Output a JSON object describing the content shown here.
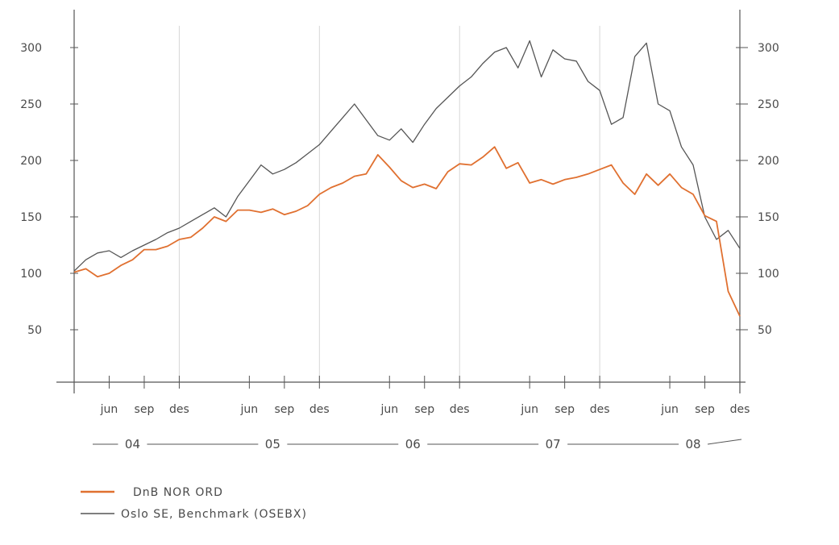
{
  "chart_data": {
    "type": "line",
    "title": "",
    "xlabel": "",
    "ylabel": "",
    "ylim": [
      0,
      320
    ],
    "y_ticks": [
      50,
      100,
      150,
      200,
      250,
      300
    ],
    "y_tick_labels_left": [
      "50",
      "100",
      "150",
      "200",
      "250",
      "300"
    ],
    "y_tick_labels_right": [
      "50",
      "100",
      "150",
      "200",
      "250",
      "300"
    ],
    "x_range": [
      "2004-03",
      "2008-12"
    ],
    "x_tick_labels": [
      {
        "date": "2004-06",
        "label": "jun"
      },
      {
        "date": "2004-09",
        "label": "sep"
      },
      {
        "date": "2004-12",
        "label": "des"
      },
      {
        "date": "2005-06",
        "label": "jun"
      },
      {
        "date": "2005-09",
        "label": "sep"
      },
      {
        "date": "2005-12",
        "label": "des"
      },
      {
        "date": "2006-06",
        "label": "jun"
      },
      {
        "date": "2006-09",
        "label": "sep"
      },
      {
        "date": "2006-12",
        "label": "des"
      },
      {
        "date": "2007-06",
        "label": "jun"
      },
      {
        "date": "2007-09",
        "label": "sep"
      },
      {
        "date": "2007-12",
        "label": "des"
      },
      {
        "date": "2008-06",
        "label": "jun"
      },
      {
        "date": "2008-09",
        "label": "sep"
      },
      {
        "date": "2008-12",
        "label": "des"
      }
    ],
    "year_labels": [
      {
        "date": "2004-08",
        "label": "04"
      },
      {
        "date": "2005-08",
        "label": "05"
      },
      {
        "date": "2006-08",
        "label": "06"
      },
      {
        "date": "2007-08",
        "label": "07"
      },
      {
        "date": "2008-08",
        "label": "08"
      }
    ],
    "grid": "vertical lines at each December",
    "legend_position": "bottom-left",
    "series": [
      {
        "name": "DnB NOR ORD",
        "color": "#e07030",
        "x": [
          "2004-03",
          "2004-04",
          "2004-05",
          "2004-06",
          "2004-07",
          "2004-08",
          "2004-09",
          "2004-10",
          "2004-11",
          "2004-12",
          "2005-01",
          "2005-02",
          "2005-03",
          "2005-04",
          "2005-05",
          "2005-06",
          "2005-07",
          "2005-08",
          "2005-09",
          "2005-10",
          "2005-11",
          "2005-12",
          "2006-01",
          "2006-02",
          "2006-03",
          "2006-04",
          "2006-05",
          "2006-06",
          "2006-07",
          "2006-08",
          "2006-09",
          "2006-10",
          "2006-11",
          "2006-12",
          "2007-01",
          "2007-02",
          "2007-03",
          "2007-04",
          "2007-05",
          "2007-06",
          "2007-07",
          "2007-08",
          "2007-09",
          "2007-10",
          "2007-11",
          "2007-12",
          "2008-01",
          "2008-02",
          "2008-03",
          "2008-04",
          "2008-05",
          "2008-06",
          "2008-07",
          "2008-08",
          "2008-09",
          "2008-10",
          "2008-11",
          "2008-12"
        ],
        "values": [
          101,
          104,
          97,
          100,
          107,
          112,
          121,
          121,
          124,
          130,
          132,
          140,
          150,
          146,
          156,
          156,
          154,
          157,
          152,
          155,
          160,
          170,
          176,
          180,
          186,
          188,
          205,
          194,
          182,
          176,
          179,
          175,
          190,
          197,
          196,
          203,
          212,
          193,
          198,
          180,
          183,
          179,
          183,
          185,
          188,
          192,
          196,
          180,
          170,
          188,
          178,
          188,
          176,
          170,
          151,
          146,
          84,
          62
        ]
      },
      {
        "name": "Oslo SE, Benchmark (OSEBX)",
        "color": "#555555",
        "x": [
          "2004-03",
          "2004-04",
          "2004-05",
          "2004-06",
          "2004-07",
          "2004-08",
          "2004-09",
          "2004-10",
          "2004-11",
          "2004-12",
          "2005-01",
          "2005-02",
          "2005-03",
          "2005-04",
          "2005-05",
          "2005-06",
          "2005-07",
          "2005-08",
          "2005-09",
          "2005-10",
          "2005-11",
          "2005-12",
          "2006-01",
          "2006-02",
          "2006-03",
          "2006-04",
          "2006-05",
          "2006-06",
          "2006-07",
          "2006-08",
          "2006-09",
          "2006-10",
          "2006-11",
          "2006-12",
          "2007-01",
          "2007-02",
          "2007-03",
          "2007-04",
          "2007-05",
          "2007-06",
          "2007-07",
          "2007-08",
          "2007-09",
          "2007-10",
          "2007-11",
          "2007-12",
          "2008-01",
          "2008-02",
          "2008-03",
          "2008-04",
          "2008-05",
          "2008-06",
          "2008-07",
          "2008-08",
          "2008-09",
          "2008-10",
          "2008-11",
          "2008-12"
        ],
        "values": [
          102,
          112,
          118,
          120,
          114,
          120,
          125,
          130,
          136,
          140,
          146,
          152,
          158,
          150,
          168,
          182,
          196,
          188,
          192,
          198,
          206,
          214,
          226,
          238,
          250,
          236,
          222,
          218,
          228,
          216,
          232,
          246,
          256,
          266,
          274,
          286,
          296,
          300,
          282,
          306,
          274,
          298,
          290,
          288,
          270,
          262,
          232,
          238,
          292,
          304,
          250,
          244,
          212,
          196,
          150,
          130,
          138,
          122
        ]
      }
    ]
  }
}
